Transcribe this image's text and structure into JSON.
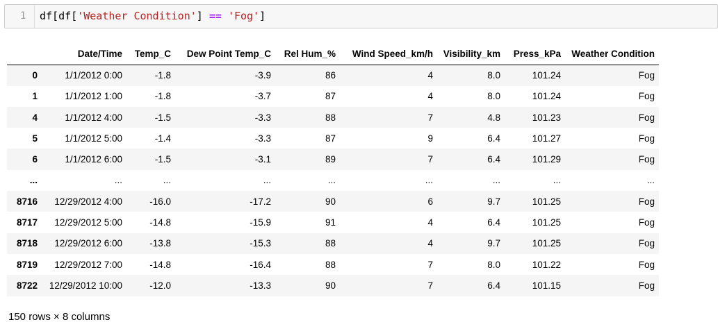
{
  "input_cell": {
    "line_number": "1",
    "code_parts": [
      {
        "text": "df[df[",
        "kind": "plain"
      },
      {
        "text": "'Weather Condition'",
        "kind": "str"
      },
      {
        "text": "] ",
        "kind": "plain"
      },
      {
        "text": "==",
        "kind": "op"
      },
      {
        "text": " ",
        "kind": "plain"
      },
      {
        "text": "'Fog'",
        "kind": "str"
      },
      {
        "text": "]",
        "kind": "plain"
      }
    ]
  },
  "table": {
    "columns": [
      "",
      "Date/Time",
      "Temp_C",
      "Dew Point Temp_C",
      "Rel Hum_%",
      "Wind Speed_km/h",
      "Visibility_km",
      "Press_kPa",
      "Weather Condition"
    ],
    "rows": [
      [
        "0",
        "1/1/2012 0:00",
        "-1.8",
        "-3.9",
        "86",
        "4",
        "8.0",
        "101.24",
        "Fog"
      ],
      [
        "1",
        "1/1/2012 1:00",
        "-1.8",
        "-3.7",
        "87",
        "4",
        "8.0",
        "101.24",
        "Fog"
      ],
      [
        "4",
        "1/1/2012 4:00",
        "-1.5",
        "-3.3",
        "88",
        "7",
        "4.8",
        "101.23",
        "Fog"
      ],
      [
        "5",
        "1/1/2012 5:00",
        "-1.4",
        "-3.3",
        "87",
        "9",
        "6.4",
        "101.27",
        "Fog"
      ],
      [
        "6",
        "1/1/2012 6:00",
        "-1.5",
        "-3.1",
        "89",
        "7",
        "6.4",
        "101.29",
        "Fog"
      ],
      [
        "...",
        "...",
        "...",
        "...",
        "...",
        "...",
        "...",
        "...",
        "..."
      ],
      [
        "8716",
        "12/29/2012 4:00",
        "-16.0",
        "-17.2",
        "90",
        "6",
        "9.7",
        "101.25",
        "Fog"
      ],
      [
        "8717",
        "12/29/2012 5:00",
        "-14.8",
        "-15.9",
        "91",
        "4",
        "6.4",
        "101.25",
        "Fog"
      ],
      [
        "8718",
        "12/29/2012 6:00",
        "-13.8",
        "-15.3",
        "88",
        "4",
        "9.7",
        "101.25",
        "Fog"
      ],
      [
        "8719",
        "12/29/2012 7:00",
        "-14.8",
        "-16.4",
        "88",
        "7",
        "8.0",
        "101.22",
        "Fog"
      ],
      [
        "8722",
        "12/29/2012 10:00",
        "-12.0",
        "-13.3",
        "90",
        "7",
        "6.4",
        "101.15",
        "Fog"
      ]
    ]
  },
  "footer": "150 rows × 8 columns"
}
